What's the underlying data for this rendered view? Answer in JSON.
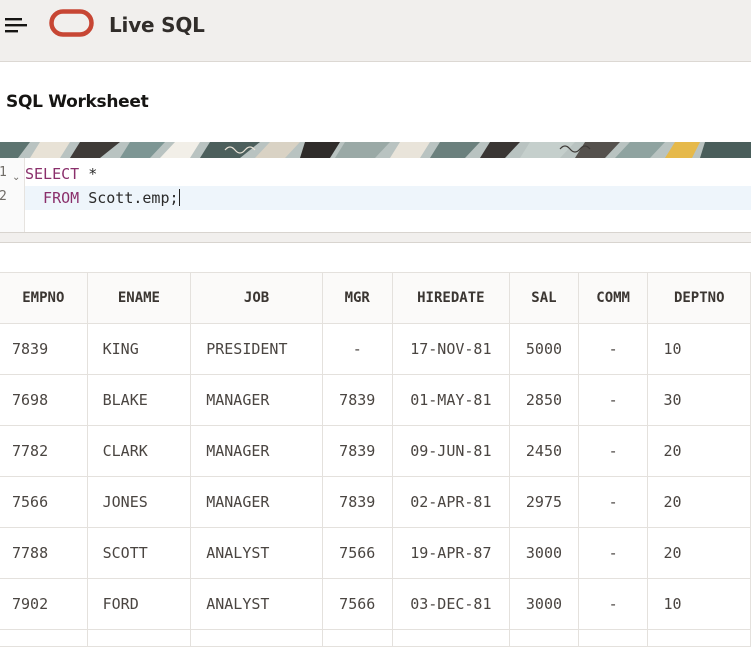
{
  "header": {
    "app_title": "Live SQL",
    "menu_icon": "hamburger-menu-icon",
    "logo_icon": "oracle-logo-icon",
    "logo_color": "#c74634"
  },
  "page": {
    "title": "SQL Worksheet"
  },
  "editor": {
    "lines": [
      {
        "number": "1",
        "keyword": "SELECT",
        "rest": " *"
      },
      {
        "number": "2",
        "keyword": "  FROM",
        "rest": " Scott.emp;"
      }
    ],
    "fold_icon": "chevron-down-icon"
  },
  "results": {
    "columns": [
      "EMPNO",
      "ENAME",
      "JOB",
      "MGR",
      "HIREDATE",
      "SAL",
      "COMM",
      "DEPTNO"
    ],
    "rows": [
      [
        "7839",
        "KING",
        "PRESIDENT",
        "-",
        "17-NOV-81",
        "5000",
        "-",
        "10"
      ],
      [
        "7698",
        "BLAKE",
        "MANAGER",
        "7839",
        "01-MAY-81",
        "2850",
        "-",
        "30"
      ],
      [
        "7782",
        "CLARK",
        "MANAGER",
        "7839",
        "09-JUN-81",
        "2450",
        "-",
        "20"
      ],
      [
        "7566",
        "JONES",
        "MANAGER",
        "7839",
        "02-APR-81",
        "2975",
        "-",
        "20"
      ],
      [
        "7788",
        "SCOTT",
        "ANALYST",
        "7566",
        "19-APR-87",
        "3000",
        "-",
        "20"
      ],
      [
        "7902",
        "FORD",
        "ANALYST",
        "7566",
        "03-DEC-81",
        "3000",
        "-",
        "10"
      ]
    ]
  }
}
